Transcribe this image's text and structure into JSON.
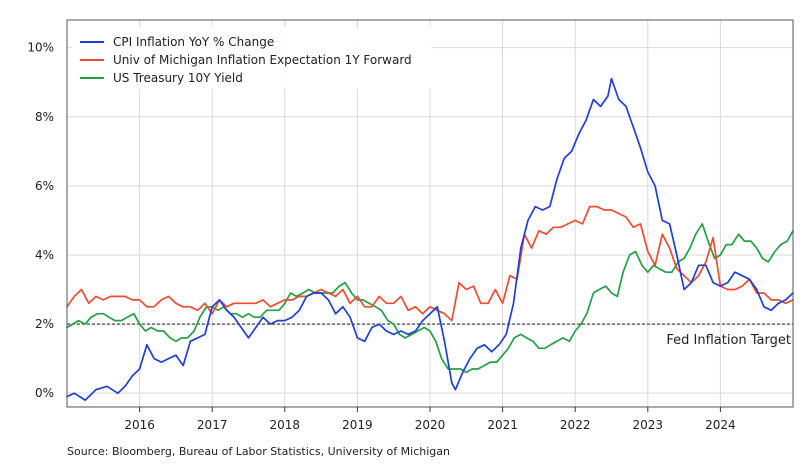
{
  "chart_data": {
    "type": "line",
    "title": "",
    "xlabel": "",
    "ylabel": "",
    "xlim": [
      2015.0,
      2025.0
    ],
    "ylim": [
      -0.4,
      10.8
    ],
    "y_ticks": [
      0,
      2,
      4,
      6,
      8,
      10
    ],
    "y_tick_labels": [
      "0%",
      "2%",
      "4%",
      "6%",
      "8%",
      "10%"
    ],
    "x_ticks": [
      2016,
      2017,
      2018,
      2019,
      2020,
      2021,
      2022,
      2023,
      2024
    ],
    "x_tick_labels": [
      "2016",
      "2017",
      "2018",
      "2019",
      "2020",
      "2021",
      "2022",
      "2023",
      "2024"
    ],
    "grid": true,
    "legend_position": "top-left",
    "reference_line": {
      "y": 2.0,
      "label": "Fed Inflation Target",
      "style": "dashed",
      "color": "#000000"
    },
    "series": [
      {
        "name": "CPI Inflation YoY % Change",
        "color": "#1f3fd8",
        "x": [
          2015.0,
          2015.1,
          2015.25,
          2015.4,
          2015.55,
          2015.7,
          2015.8,
          2015.9,
          2016.0,
          2016.1,
          2016.2,
          2016.3,
          2016.4,
          2016.5,
          2016.6,
          2016.7,
          2016.8,
          2016.9,
          2017.0,
          2017.1,
          2017.2,
          2017.3,
          2017.4,
          2017.5,
          2017.6,
          2017.7,
          2017.8,
          2017.9,
          2018.0,
          2018.1,
          2018.2,
          2018.3,
          2018.4,
          2018.5,
          2018.6,
          2018.7,
          2018.8,
          2018.9,
          2019.0,
          2019.1,
          2019.2,
          2019.3,
          2019.4,
          2019.5,
          2019.6,
          2019.7,
          2019.8,
          2019.9,
          2020.0,
          2020.1,
          2020.2,
          2020.3,
          2020.35,
          2020.45,
          2020.55,
          2020.65,
          2020.75,
          2020.85,
          2020.95,
          2021.05,
          2021.15,
          2021.25,
          2021.35,
          2021.45,
          2021.55,
          2021.65,
          2021.75,
          2021.85,
          2021.95,
          2022.05,
          2022.15,
          2022.25,
          2022.35,
          2022.45,
          2022.5,
          2022.6,
          2022.7,
          2022.8,
          2022.9,
          2023.0,
          2023.1,
          2023.2,
          2023.3,
          2023.4,
          2023.5,
          2023.6,
          2023.7,
          2023.8,
          2023.9,
          2024.0,
          2024.1,
          2024.2,
          2024.3,
          2024.4,
          2024.5,
          2024.6,
          2024.7,
          2024.8,
          2024.9,
          2025.0
        ],
        "y": [
          -0.1,
          0.0,
          -0.2,
          0.1,
          0.2,
          0.0,
          0.2,
          0.5,
          0.7,
          1.4,
          1.0,
          0.9,
          1.0,
          1.1,
          0.8,
          1.5,
          1.6,
          1.7,
          2.5,
          2.7,
          2.4,
          2.2,
          1.9,
          1.6,
          1.9,
          2.2,
          2.0,
          2.1,
          2.1,
          2.2,
          2.4,
          2.8,
          2.9,
          2.9,
          2.7,
          2.3,
          2.5,
          2.2,
          1.6,
          1.5,
          1.9,
          2.0,
          1.8,
          1.7,
          1.8,
          1.7,
          1.8,
          2.1,
          2.3,
          2.5,
          1.5,
          0.3,
          0.1,
          0.6,
          1.0,
          1.3,
          1.4,
          1.2,
          1.4,
          1.7,
          2.6,
          4.2,
          5.0,
          5.4,
          5.3,
          5.4,
          6.2,
          6.8,
          7.0,
          7.5,
          7.9,
          8.5,
          8.3,
          8.6,
          9.1,
          8.5,
          8.3,
          7.7,
          7.1,
          6.4,
          6.0,
          5.0,
          4.9,
          4.0,
          3.0,
          3.2,
          3.7,
          3.7,
          3.2,
          3.1,
          3.2,
          3.5,
          3.4,
          3.3,
          3.0,
          2.5,
          2.4,
          2.6,
          2.7,
          2.9
        ]
      },
      {
        "name": "Univ of Michigan Inflation Expectation 1Y Forward",
        "color": "#ef4c30",
        "x": [
          2015.0,
          2015.1,
          2015.2,
          2015.3,
          2015.4,
          2015.5,
          2015.6,
          2015.7,
          2015.8,
          2015.9,
          2016.0,
          2016.1,
          2016.2,
          2016.3,
          2016.4,
          2016.5,
          2016.6,
          2016.7,
          2016.8,
          2016.9,
          2017.0,
          2017.1,
          2017.2,
          2017.3,
          2017.4,
          2017.5,
          2017.6,
          2017.7,
          2017.8,
          2017.9,
          2018.0,
          2018.1,
          2018.2,
          2018.3,
          2018.4,
          2018.5,
          2018.6,
          2018.7,
          2018.8,
          2018.9,
          2019.0,
          2019.1,
          2019.2,
          2019.3,
          2019.4,
          2019.5,
          2019.6,
          2019.7,
          2019.8,
          2019.9,
          2020.0,
          2020.1,
          2020.2,
          2020.3,
          2020.4,
          2020.5,
          2020.6,
          2020.7,
          2020.8,
          2020.9,
          2021.0,
          2021.1,
          2021.2,
          2021.3,
          2021.4,
          2021.5,
          2021.6,
          2021.7,
          2021.8,
          2021.9,
          2022.0,
          2022.1,
          2022.2,
          2022.3,
          2022.4,
          2022.5,
          2022.6,
          2022.7,
          2022.8,
          2022.9,
          2023.0,
          2023.1,
          2023.2,
          2023.3,
          2023.4,
          2023.5,
          2023.6,
          2023.7,
          2023.8,
          2023.9,
          2024.0,
          2024.1,
          2024.2,
          2024.3,
          2024.4,
          2024.5,
          2024.6,
          2024.7,
          2024.8,
          2024.9,
          2025.0
        ],
        "y": [
          2.5,
          2.8,
          3.0,
          2.6,
          2.8,
          2.7,
          2.8,
          2.8,
          2.8,
          2.7,
          2.7,
          2.5,
          2.5,
          2.7,
          2.8,
          2.6,
          2.5,
          2.5,
          2.4,
          2.6,
          2.3,
          2.7,
          2.5,
          2.6,
          2.6,
          2.6,
          2.6,
          2.7,
          2.5,
          2.6,
          2.7,
          2.7,
          2.8,
          2.8,
          2.9,
          3.0,
          2.9,
          2.8,
          3.0,
          2.6,
          2.8,
          2.5,
          2.5,
          2.8,
          2.6,
          2.6,
          2.8,
          2.4,
          2.5,
          2.3,
          2.5,
          2.4,
          2.3,
          2.1,
          3.2,
          3.0,
          3.1,
          2.6,
          2.6,
          3.0,
          2.6,
          3.4,
          3.3,
          4.6,
          4.2,
          4.7,
          4.6,
          4.8,
          4.8,
          4.9,
          5.0,
          4.9,
          5.4,
          5.4,
          5.3,
          5.3,
          5.2,
          5.1,
          4.8,
          4.9,
          4.1,
          3.7,
          4.6,
          4.2,
          3.6,
          3.4,
          3.2,
          3.4,
          3.8,
          4.5,
          3.1,
          3.0,
          3.0,
          3.1,
          3.3,
          2.9,
          2.9,
          2.7,
          2.7,
          2.6,
          2.7
        ]
      },
      {
        "name": "US Treasury 10Y Yield",
        "color": "#22a045",
        "x": [
          2015.0,
          2015.08,
          2015.16,
          2015.25,
          2015.33,
          2015.42,
          2015.5,
          2015.58,
          2015.66,
          2015.75,
          2015.83,
          2015.92,
          2016.0,
          2016.08,
          2016.16,
          2016.25,
          2016.33,
          2016.42,
          2016.5,
          2016.58,
          2016.66,
          2016.75,
          2016.83,
          2016.92,
          2017.0,
          2017.08,
          2017.16,
          2017.25,
          2017.33,
          2017.42,
          2017.5,
          2017.58,
          2017.66,
          2017.75,
          2017.83,
          2017.92,
          2018.0,
          2018.08,
          2018.16,
          2018.25,
          2018.33,
          2018.42,
          2018.5,
          2018.58,
          2018.66,
          2018.75,
          2018.83,
          2018.92,
          2019.0,
          2019.08,
          2019.16,
          2019.25,
          2019.33,
          2019.42,
          2019.5,
          2019.58,
          2019.66,
          2019.75,
          2019.83,
          2019.92,
          2020.0,
          2020.08,
          2020.16,
          2020.25,
          2020.33,
          2020.42,
          2020.5,
          2020.58,
          2020.66,
          2020.75,
          2020.83,
          2020.92,
          2021.0,
          2021.08,
          2021.16,
          2021.25,
          2021.33,
          2021.42,
          2021.5,
          2021.58,
          2021.66,
          2021.75,
          2021.83,
          2021.92,
          2022.0,
          2022.08,
          2022.16,
          2022.25,
          2022.33,
          2022.42,
          2022.5,
          2022.58,
          2022.66,
          2022.75,
          2022.83,
          2022.92,
          2023.0,
          2023.08,
          2023.16,
          2023.25,
          2023.33,
          2023.42,
          2023.5,
          2023.58,
          2023.66,
          2023.75,
          2023.83,
          2023.92,
          2024.0,
          2024.08,
          2024.16,
          2024.25,
          2024.33,
          2024.42,
          2024.5,
          2024.58,
          2024.66,
          2024.75,
          2024.83,
          2024.92,
          2025.0
        ],
        "y": [
          1.9,
          2.0,
          2.1,
          2.0,
          2.2,
          2.3,
          2.3,
          2.2,
          2.1,
          2.1,
          2.2,
          2.3,
          2.0,
          1.8,
          1.9,
          1.8,
          1.8,
          1.6,
          1.5,
          1.6,
          1.6,
          1.8,
          2.2,
          2.5,
          2.5,
          2.4,
          2.5,
          2.3,
          2.3,
          2.2,
          2.3,
          2.2,
          2.2,
          2.4,
          2.4,
          2.4,
          2.6,
          2.9,
          2.8,
          2.9,
          3.0,
          2.9,
          2.9,
          2.9,
          2.9,
          3.1,
          3.2,
          2.9,
          2.7,
          2.7,
          2.6,
          2.5,
          2.4,
          2.1,
          2.0,
          1.7,
          1.6,
          1.7,
          1.8,
          1.9,
          1.8,
          1.5,
          1.0,
          0.7,
          0.7,
          0.7,
          0.6,
          0.7,
          0.7,
          0.8,
          0.9,
          0.9,
          1.1,
          1.3,
          1.6,
          1.7,
          1.6,
          1.5,
          1.3,
          1.3,
          1.4,
          1.5,
          1.6,
          1.5,
          1.8,
          2.0,
          2.3,
          2.9,
          3.0,
          3.1,
          2.9,
          2.8,
          3.5,
          4.0,
          4.1,
          3.7,
          3.5,
          3.7,
          3.6,
          3.5,
          3.5,
          3.8,
          3.9,
          4.2,
          4.6,
          4.9,
          4.4,
          3.9,
          4.0,
          4.3,
          4.3,
          4.6,
          4.4,
          4.4,
          4.2,
          3.9,
          3.8,
          4.1,
          4.3,
          4.4,
          4.7
        ]
      }
    ]
  },
  "source_text": "Source: Bloomberg, Bureau of Labor Statistics, University of Michigan"
}
